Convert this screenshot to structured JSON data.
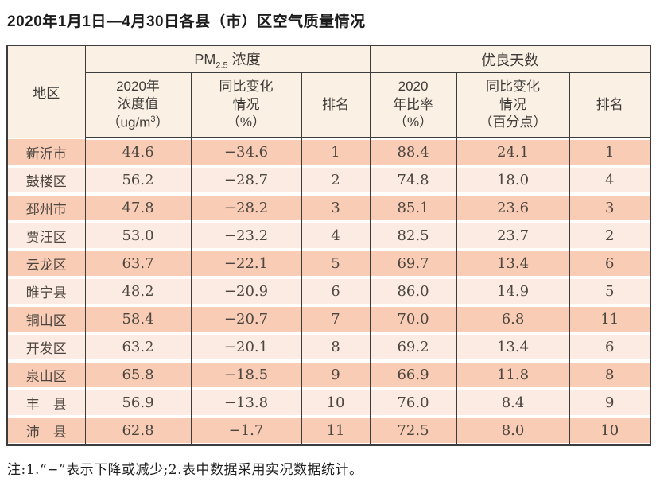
{
  "title": "2020年1月1日—4月30日各县（市）区空气质量情况",
  "table": {
    "region_header": "地区",
    "pm_group": {
      "pre": "PM",
      "sub": "2.5",
      "post": " 浓度"
    },
    "good_group": "优良天数",
    "sub_headers": {
      "pm_value": {
        "line1": "2020年",
        "line2": "浓度值",
        "line3_pre": "（ug/m",
        "line3_sup": "3",
        "line3_post": "）"
      },
      "pm_change": "同比变化\n情况\n（%）",
      "pm_rank": "排名",
      "good_ratio": "2020\n年比率\n（%）",
      "good_change": "同比变化\n情况\n（百分点）",
      "good_rank": "排名"
    },
    "rows": [
      {
        "region": "新沂市",
        "pm_value": "44.6",
        "pm_change": "−34.6",
        "pm_rank": "1",
        "good_ratio": "88.4",
        "good_change": "24.1",
        "good_rank": "1"
      },
      {
        "region": "鼓楼区",
        "pm_value": "56.2",
        "pm_change": "−28.7",
        "pm_rank": "2",
        "good_ratio": "74.8",
        "good_change": "18.0",
        "good_rank": "4"
      },
      {
        "region": "邳州市",
        "pm_value": "47.8",
        "pm_change": "−28.2",
        "pm_rank": "3",
        "good_ratio": "85.1",
        "good_change": "23.6",
        "good_rank": "3"
      },
      {
        "region": "贾汪区",
        "pm_value": "53.0",
        "pm_change": "−23.2",
        "pm_rank": "4",
        "good_ratio": "82.5",
        "good_change": "23.7",
        "good_rank": "2"
      },
      {
        "region": "云龙区",
        "pm_value": "63.7",
        "pm_change": "−22.1",
        "pm_rank": "5",
        "good_ratio": "69.7",
        "good_change": "13.4",
        "good_rank": "6"
      },
      {
        "region": "睢宁县",
        "pm_value": "48.2",
        "pm_change": "−20.9",
        "pm_rank": "6",
        "good_ratio": "86.0",
        "good_change": "14.9",
        "good_rank": "5"
      },
      {
        "region": "铜山区",
        "pm_value": "58.4",
        "pm_change": "−20.7",
        "pm_rank": "7",
        "good_ratio": "70.0",
        "good_change": "6.8",
        "good_rank": "11"
      },
      {
        "region": "开发区",
        "pm_value": "63.2",
        "pm_change": "−20.1",
        "pm_rank": "8",
        "good_ratio": "69.2",
        "good_change": "13.4",
        "good_rank": "6"
      },
      {
        "region": "泉山区",
        "pm_value": "65.8",
        "pm_change": "−18.5",
        "pm_rank": "9",
        "good_ratio": "66.9",
        "good_change": "11.8",
        "good_rank": "8"
      },
      {
        "region": "丰　县",
        "pm_value": "56.9",
        "pm_change": "−13.8",
        "pm_rank": "10",
        "good_ratio": "76.0",
        "good_change": "8.4",
        "good_rank": "9"
      },
      {
        "region": "沛　县",
        "pm_value": "62.8",
        "pm_change": "−1.7",
        "pm_rank": "11",
        "good_ratio": "72.5",
        "good_change": "8.0",
        "good_rank": "10"
      }
    ]
  },
  "note": "注:1.“−”表示下降或减少;2.表中数据采用实况数据统计。",
  "colors": {
    "stripe_dark": "#f8ccb5",
    "stripe_light": "#fcebe2",
    "header_bg": "#fbf0e4",
    "border": "#3c3c3c"
  }
}
